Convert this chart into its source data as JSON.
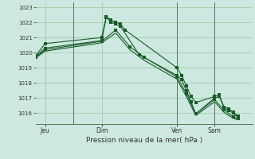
{
  "background_color": "#cce8e0",
  "grid_color": "#99cc99",
  "line_color": "#1a5c2a",
  "title": "Pression niveau de la mer( hPa )",
  "ylim": [
    1015.3,
    1023.3
  ],
  "yticks": [
    1016,
    1017,
    1018,
    1019,
    1020,
    1021,
    1022,
    1023
  ],
  "day_labels": [
    "Jeu",
    "Dim",
    "Ven",
    "Sam"
  ],
  "day_positions": [
    2,
    14,
    30,
    38
  ],
  "vline_positions": [
    8,
    30,
    38
  ],
  "xlim": [
    0,
    46
  ],
  "series1_x": [
    0,
    2,
    14,
    15,
    16,
    17,
    18,
    19,
    30,
    31,
    32,
    33,
    34,
    38,
    39,
    40,
    41,
    42,
    43
  ],
  "series1_y": [
    1019.8,
    1020.6,
    1021.0,
    1022.4,
    1022.15,
    1022.0,
    1021.9,
    1021.5,
    1019.0,
    1018.5,
    1017.8,
    1017.1,
    1016.7,
    1017.1,
    1017.2,
    1016.4,
    1016.3,
    1016.05,
    1015.8
  ],
  "series2_x": [
    0,
    2,
    14,
    15,
    16,
    17,
    18,
    22,
    30,
    31,
    32,
    33,
    34,
    38,
    39,
    40,
    41,
    42,
    43
  ],
  "series2_y": [
    1019.75,
    1020.3,
    1020.8,
    1022.35,
    1022.0,
    1021.9,
    1021.75,
    1019.85,
    1018.5,
    1018.2,
    1017.5,
    1016.75,
    1015.95,
    1017.0,
    1017.1,
    1016.35,
    1016.15,
    1016.0,
    1015.7
  ],
  "series3_x": [
    0,
    2,
    14,
    17,
    20,
    23,
    30,
    32,
    34,
    38,
    40,
    42,
    43
  ],
  "series3_y": [
    1019.7,
    1020.2,
    1020.75,
    1021.5,
    1020.4,
    1019.7,
    1018.4,
    1017.3,
    1015.95,
    1016.9,
    1016.2,
    1015.75,
    1015.65
  ],
  "series4_x": [
    0,
    2,
    14,
    17,
    20,
    23,
    30,
    32,
    34,
    38,
    40,
    42,
    43
  ],
  "series4_y": [
    1019.65,
    1020.1,
    1020.65,
    1021.3,
    1020.2,
    1019.5,
    1018.25,
    1017.1,
    1015.85,
    1016.75,
    1016.05,
    1015.65,
    1015.55
  ]
}
